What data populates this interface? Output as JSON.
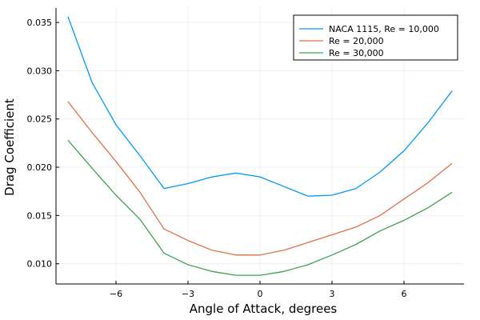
{
  "chart_data": {
    "type": "line",
    "title": "",
    "xlabel": "Angle of Attack, degrees",
    "ylabel": "Drag Coefficient",
    "xlim": [
      -8.5,
      8.5
    ],
    "ylim": [
      0.0079,
      0.0365
    ],
    "x_ticks": [
      -6,
      -3,
      0,
      3,
      6
    ],
    "x_tick_labels": [
      "−6",
      "−3",
      "0",
      "3",
      "6"
    ],
    "y_ticks": [
      0.01,
      0.015,
      0.02,
      0.025,
      0.03,
      0.035
    ],
    "y_tick_labels": [
      "0.010",
      "0.015",
      "0.020",
      "0.025",
      "0.030",
      "0.035"
    ],
    "grid": true,
    "legend_position": "top-right",
    "x": [
      -8,
      -7,
      -6,
      -5,
      -4,
      -3,
      -2,
      -1,
      0,
      1,
      2,
      3,
      4,
      5,
      6,
      7,
      8
    ],
    "series": [
      {
        "name": "NACA 1115, Re = 10,000",
        "color": "#009af9",
        "values": [
          0.0356,
          0.0288,
          0.0244,
          0.0212,
          0.0178,
          0.0183,
          0.019,
          0.0194,
          0.019,
          0.018,
          0.017,
          0.0171,
          0.0178,
          0.0195,
          0.0217,
          0.0246,
          0.0279
        ]
      },
      {
        "name": "Re = 20,000",
        "color": "#e26f46",
        "values": [
          0.0268,
          0.0236,
          0.0206,
          0.0174,
          0.0136,
          0.0124,
          0.0114,
          0.0109,
          0.0109,
          0.0114,
          0.0122,
          0.013,
          0.0138,
          0.015,
          0.0167,
          0.0184,
          0.0204
        ]
      },
      {
        "name": "Re = 30,000",
        "color": "#3da44d",
        "values": [
          0.0228,
          0.0199,
          0.0171,
          0.0146,
          0.0111,
          0.0099,
          0.0092,
          0.0088,
          0.0088,
          0.0092,
          0.0099,
          0.0109,
          0.012,
          0.0134,
          0.0145,
          0.0158,
          0.0174
        ]
      }
    ]
  }
}
